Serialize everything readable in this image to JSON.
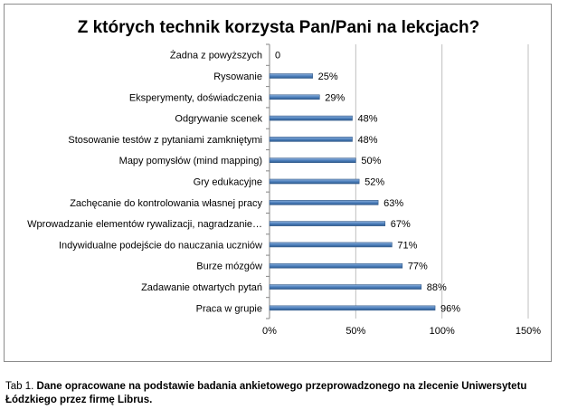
{
  "chart_data": {
    "type": "bar",
    "orientation": "horizontal",
    "title": "Z których technik korzysta Pan/Pani na lekcjach?",
    "categories": [
      "Żadna z powyższych",
      "Rysowanie",
      "Eksperymenty, doświadczenia",
      "Odgrywanie scenek",
      "Stosowanie testów z pytaniami zamkniętymi",
      "Mapy pomysłów (mind mapping)",
      "Gry edukacyjne",
      "Zachęcanie do kontrolowania własnej pracy",
      "Wprowadzanie elementów rywalizacji, nagradzanie…",
      "Indywidualne podejście do nauczania uczniów",
      "Burze mózgów",
      "Zadawanie otwartych pytań",
      "Praca w grupie"
    ],
    "values": [
      0,
      25,
      29,
      48,
      48,
      50,
      52,
      63,
      67,
      71,
      77,
      88,
      96
    ],
    "value_labels": [
      "0",
      "25%",
      "29%",
      "48%",
      "48%",
      "50%",
      "52%",
      "63%",
      "67%",
      "71%",
      "77%",
      "88%",
      "96%"
    ],
    "xlim": [
      0,
      150
    ],
    "x_ticks": [
      0,
      50,
      100,
      150
    ],
    "x_tick_labels": [
      "0%",
      "50%",
      "100%",
      "150%"
    ],
    "grid": true,
    "legend": "none",
    "bar_color": "#4f81bd"
  },
  "caption": {
    "lead": "Tab 1. ",
    "text": "Dane opracowane na podstawie badania ankietowego przeprowadzonego na zlecenie Uniwersytetu Łódzkiego przez firmę  Librus."
  }
}
